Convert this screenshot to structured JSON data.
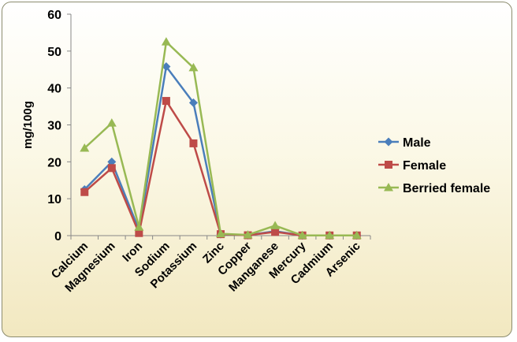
{
  "chart_data": {
    "type": "line",
    "title": "",
    "xlabel": "",
    "ylabel": "mg/100g",
    "ylim": [
      0,
      60
    ],
    "yticks": [
      0,
      10,
      20,
      30,
      40,
      50,
      60
    ],
    "grid": false,
    "legend_position": "right",
    "categories": [
      "Calcium",
      "Magnesium",
      "Iron",
      "Sodium",
      "Potassium",
      "Zinc",
      "Copper",
      "Manganese",
      "Mercury",
      "Cadmium",
      "Arsenic"
    ],
    "series": [
      {
        "name": "Male",
        "color": "#4a7ebb",
        "marker": "diamond",
        "values": [
          12.5,
          20.0,
          1.5,
          45.8,
          36.0,
          0.4,
          0.1,
          1.2,
          0.05,
          0.05,
          0.05
        ]
      },
      {
        "name": "Female",
        "color": "#be4b48",
        "marker": "square",
        "values": [
          11.8,
          18.3,
          0.7,
          36.5,
          25.0,
          0.4,
          0.1,
          1.0,
          0.05,
          0.05,
          0.05
        ]
      },
      {
        "name": "Berried female",
        "color": "#98b954",
        "marker": "triangle",
        "values": [
          23.7,
          30.5,
          2.3,
          52.5,
          45.5,
          0.5,
          0.2,
          2.7,
          0.05,
          0.05,
          0.05
        ]
      }
    ]
  }
}
